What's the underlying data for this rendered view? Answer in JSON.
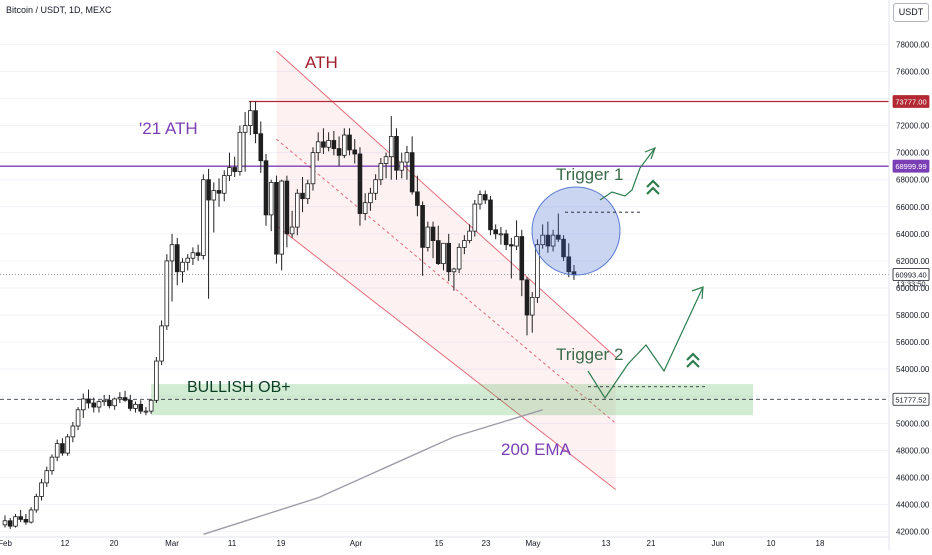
{
  "header": {
    "title": "Bitcoin / USDT, 1D, MEXC",
    "symbol_badge": "USDT"
  },
  "chart_data": {
    "type": "candlestick",
    "y_axis": {
      "min": 41600,
      "max": 79800,
      "ticks": [
        42000,
        44000,
        46000,
        48000,
        50000,
        52000,
        54000,
        56000,
        58000,
        60000,
        62000,
        64000,
        66000,
        68000,
        70000,
        72000,
        74000,
        76000,
        78000
      ]
    },
    "x_axis": {
      "ticks": [
        "Feb",
        "12",
        "20",
        "Mar",
        "11",
        "19",
        "Apr",
        "15",
        "23",
        "May",
        "13",
        "21",
        "Jun",
        "10",
        "18"
      ]
    },
    "candles": [
      [
        42500,
        43200,
        42300,
        42800
      ],
      [
        42800,
        43000,
        42200,
        42400
      ],
      [
        42400,
        43300,
        42300,
        43100
      ],
      [
        43100,
        43600,
        42700,
        42900
      ],
      [
        42900,
        43300,
        42500,
        42700
      ],
      [
        42700,
        43800,
        42600,
        43600
      ],
      [
        43600,
        44800,
        43400,
        44600
      ],
      [
        44600,
        45900,
        44300,
        45600
      ],
      [
        45600,
        46800,
        45300,
        46500
      ],
      [
        46500,
        47700,
        46200,
        47500
      ],
      [
        47500,
        48800,
        47200,
        48500
      ],
      [
        48500,
        48900,
        47600,
        47800
      ],
      [
        47800,
        49200,
        47600,
        49000
      ],
      [
        49000,
        50100,
        48600,
        49800
      ],
      [
        49800,
        51200,
        49500,
        51000
      ],
      [
        51000,
        52200,
        50400,
        51800
      ],
      [
        51800,
        52500,
        51100,
        51500
      ],
      [
        51500,
        51900,
        50800,
        51200
      ],
      [
        51200,
        51700,
        50800,
        51600
      ],
      [
        51600,
        52100,
        51300,
        51700
      ],
      [
        51700,
        52100,
        51100,
        51300
      ],
      [
        51300,
        51900,
        51000,
        51800
      ],
      [
        51800,
        52300,
        51500,
        51900
      ],
      [
        51900,
        52400,
        51600,
        51700
      ],
      [
        51700,
        52100,
        50900,
        51100
      ],
      [
        51100,
        51600,
        50800,
        51400
      ],
      [
        51400,
        51700,
        50700,
        50900
      ],
      [
        50900,
        51200,
        50600,
        50900
      ],
      [
        50900,
        51800,
        50700,
        51700
      ],
      [
        51700,
        54900,
        51500,
        54600
      ],
      [
        54600,
        57600,
        54300,
        57200
      ],
      [
        57200,
        62500,
        56900,
        62000
      ],
      [
        62000,
        64000,
        59000,
        63200
      ],
      [
        63200,
        63700,
        60200,
        61200
      ],
      [
        61200,
        62200,
        60400,
        61900
      ],
      [
        61900,
        62500,
        61300,
        62200
      ],
      [
        62200,
        63000,
        61700,
        62600
      ],
      [
        62600,
        63200,
        62000,
        62400
      ],
      [
        62400,
        68400,
        62100,
        68000
      ],
      [
        68000,
        68800,
        59200,
        66500
      ],
      [
        66500,
        67800,
        64100,
        67200
      ],
      [
        67200,
        68100,
        66000,
        67000
      ],
      [
        67000,
        68700,
        66400,
        68300
      ],
      [
        68300,
        70000,
        67900,
        68900
      ],
      [
        68900,
        69700,
        68200,
        68600
      ],
      [
        68600,
        72000,
        68300,
        71500
      ],
      [
        71500,
        73000,
        68600,
        72000
      ],
      [
        72000,
        73800,
        71300,
        73100
      ],
      [
        73100,
        73777,
        70700,
        71400
      ],
      [
        71400,
        72300,
        68500,
        69400
      ],
      [
        69400,
        69900,
        64600,
        65400
      ],
      [
        65400,
        68000,
        64200,
        67800
      ],
      [
        67800,
        68300,
        61800,
        62500
      ],
      [
        62500,
        68000,
        61300,
        67900
      ],
      [
        67900,
        68300,
        63000,
        64000
      ],
      [
        64000,
        65700,
        63700,
        64500
      ],
      [
        64500,
        67300,
        63900,
        67000
      ],
      [
        67000,
        68200,
        65600,
        66600
      ],
      [
        66600,
        68000,
        66200,
        67700
      ],
      [
        67700,
        70400,
        67200,
        70000
      ],
      [
        70000,
        71500,
        69400,
        70800
      ],
      [
        70800,
        71800,
        69900,
        70400
      ],
      [
        70400,
        71500,
        70100,
        70900
      ],
      [
        70900,
        71600,
        69800,
        70300
      ],
      [
        70300,
        71200,
        69000,
        69800
      ],
      [
        69800,
        71800,
        69600,
        71300
      ],
      [
        71300,
        71800,
        69800,
        70200
      ],
      [
        70200,
        71000,
        69200,
        69900
      ],
      [
        69900,
        70400,
        64600,
        65500
      ],
      [
        65500,
        67000,
        65000,
        66300
      ],
      [
        66300,
        67400,
        65700,
        67000
      ],
      [
        67000,
        68400,
        66500,
        68000
      ],
      [
        68000,
        69600,
        67600,
        69200
      ],
      [
        69200,
        70000,
        68100,
        69700
      ],
      [
        69700,
        72700,
        68000,
        71200
      ],
      [
        71200,
        71800,
        68000,
        68700
      ],
      [
        68700,
        70000,
        68100,
        69300
      ],
      [
        69300,
        70500,
        68000,
        70000
      ],
      [
        70000,
        71200,
        66900,
        67100
      ],
      [
        67100,
        68300,
        65300,
        66100
      ],
      [
        66100,
        66400,
        60900,
        63000
      ],
      [
        63000,
        64900,
        62700,
        64500
      ],
      [
        64500,
        64900,
        62200,
        63500
      ],
      [
        63500,
        64600,
        61700,
        61800
      ],
      [
        61800,
        63300,
        61300,
        63300
      ],
      [
        63300,
        64000,
        60500,
        61200
      ],
      [
        61200,
        61500,
        59800,
        61400
      ],
      [
        61400,
        63300,
        61100,
        63000
      ],
      [
        63000,
        63900,
        62500,
        63500
      ],
      [
        63500,
        64700,
        63300,
        64200
      ],
      [
        64200,
        66500,
        63800,
        66200
      ],
      [
        66200,
        67200,
        65800,
        66900
      ],
      [
        66900,
        67200,
        66200,
        66500
      ],
      [
        66500,
        66800,
        63900,
        64300
      ],
      [
        64300,
        64700,
        63600,
        64000
      ],
      [
        64000,
        64500,
        63200,
        64000
      ],
      [
        64000,
        64300,
        62800,
        63200
      ],
      [
        63200,
        63700,
        60700,
        63100
      ],
      [
        63100,
        65000,
        62800,
        63800
      ],
      [
        63800,
        64300,
        59400,
        60600
      ],
      [
        60600,
        60800,
        56500,
        58000
      ],
      [
        58000,
        59700,
        56700,
        59300
      ],
      [
        59300,
        63600,
        58900,
        63200
      ],
      [
        63200,
        64700,
        62900,
        63900
      ],
      [
        63900,
        64900,
        62600,
        63100
      ],
      [
        63100,
        64300,
        62700,
        63900
      ],
      [
        63900,
        65500,
        63400,
        63600
      ],
      [
        63600,
        63900,
        62000,
        62300
      ],
      [
        62300,
        63300,
        60800,
        61200
      ],
      [
        61200,
        61700,
        60600,
        60993
      ]
    ],
    "ema_points": [
      [
        38,
        41800
      ],
      [
        60,
        44500
      ],
      [
        86,
        49000
      ],
      [
        103,
        51000
      ]
    ],
    "channel": {
      "upper": [
        [
          52,
          77500
        ],
        [
          117,
          54900
        ]
      ],
      "lower": [
        [
          52,
          64600
        ],
        [
          117,
          45100
        ]
      ],
      "mid": [
        [
          52,
          71000
        ],
        [
          117,
          50000
        ]
      ]
    },
    "price_lines": [
      {
        "label": "ATH",
        "value": 73777,
        "tag": "73777.00",
        "color": "#b22833"
      },
      {
        "label": "'21 ATH",
        "value": 68999.99,
        "tag": "68999.99",
        "color": "#7b3fb5"
      },
      {
        "label": "",
        "value": 60993.4,
        "tag": "60993.40",
        "subtag": "13:33:50",
        "color": "#131722"
      },
      {
        "label": "",
        "value": 51777.52,
        "tag": "51777.52",
        "color": "#131722"
      }
    ],
    "order_block": {
      "label": "BULLISH OB+",
      "low": 50600,
      "high": 52900
    },
    "annotations": [
      {
        "text": "ATH",
        "color": "#a11d2b"
      },
      {
        "text": "'21 ATH",
        "color": "#7b3fb5"
      },
      {
        "text": "Trigger 1",
        "color": "#3b6b4a"
      },
      {
        "text": "Trigger 2",
        "color": "#3b6b4a"
      },
      {
        "text": "200 EMA",
        "color": "#7b3fb5"
      }
    ],
    "trigger_levels": [
      65600,
      52700
    ],
    "colors": {
      "up": "#1f1f1f",
      "down": "#1f1f1f",
      "grid": "#f0f3fa",
      "axis_text": "#131722"
    }
  }
}
